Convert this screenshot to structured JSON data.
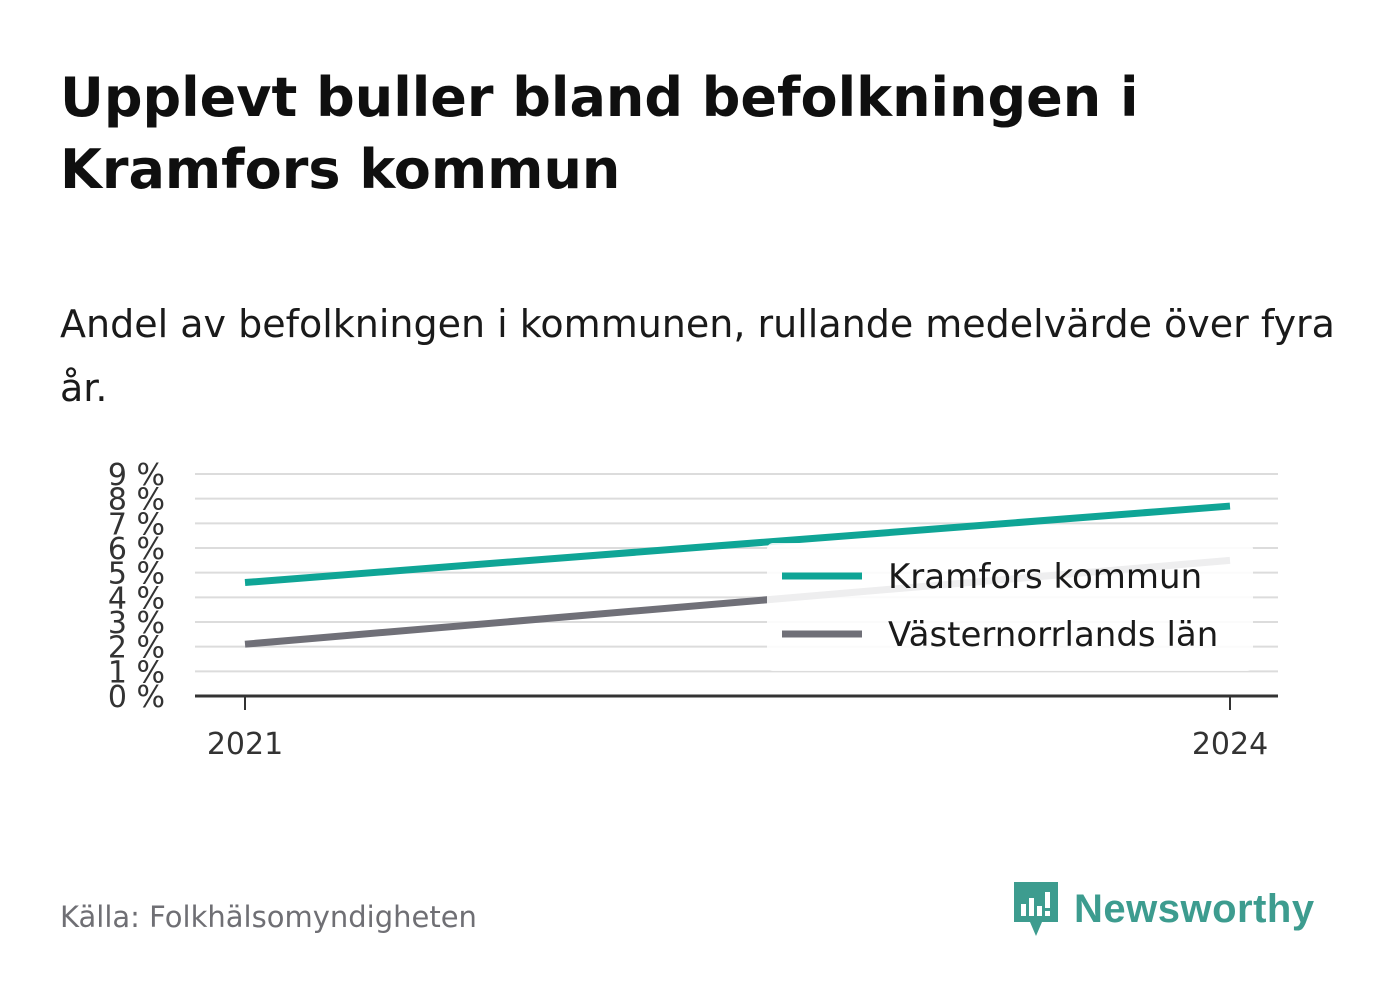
{
  "title": "Upplevt buller bland befolkningen i Kramfors kommun",
  "subtitle": "Andel av befolkningen i kommunen, rullande medelvärde över fyra år.",
  "source": "Källa: Folkhälsomyndigheten",
  "brand": {
    "name": "Newsworthy",
    "icon": "newsworthy-logo-icon",
    "color": "#3d9c8f"
  },
  "chart_data": {
    "type": "line",
    "x": [
      2021,
      2024
    ],
    "xticks": [
      "2021",
      "2024"
    ],
    "yticks": [
      "0 %",
      "1 %",
      "2 %",
      "3 %",
      "4 %",
      "5 %",
      "6 %",
      "7 %",
      "8 %",
      "9 %"
    ],
    "ylim": [
      0,
      9
    ],
    "grid": true,
    "legend_position": "right",
    "series": [
      {
        "name": "Kramfors kommun",
        "values": [
          4.6,
          7.7
        ],
        "color": "#0fa596"
      },
      {
        "name": "Västernorrlands län",
        "values": [
          2.1,
          5.5
        ],
        "color": "#707078"
      }
    ]
  }
}
